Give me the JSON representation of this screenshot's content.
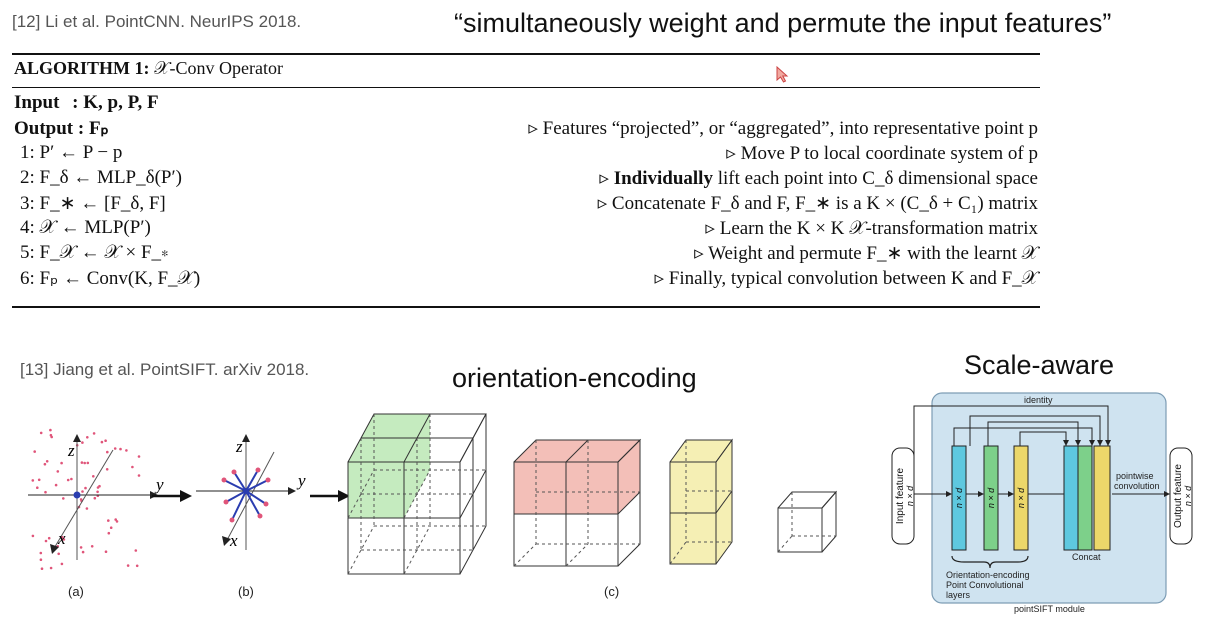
{
  "slide": {
    "ref_top": "[12] Li et al. PointCNN. NeurIPS 2018.",
    "quote": "“simultaneously weight and permute the input features”",
    "ref_bottom": "[13] Jiang et al. PointSIFT. arXiv 2018.",
    "orientation_title": "orientation-encoding",
    "scale_title": "Scale-aware"
  },
  "algorithm": {
    "title_bold": "ALGORITHM 1:",
    "title_rest": "𝒳-Conv Operator",
    "input_label": "Input",
    "input_value": ": K, p, P, F",
    "output_label": "Output",
    "output_value": ": Fₚ",
    "output_comment": "▹ Features “projected”, or “aggregated”, into representative point p",
    "steps": [
      {
        "code": "1:  P′ ← P − p",
        "comment": "▹ Move P to local coordinate system of p"
      },
      {
        "code": "2:  F_δ ← MLP_δ(P′)",
        "comment_bold": "Individually",
        "comment": " lift each point into C_δ dimensional space"
      },
      {
        "code": "3:  F_∗ ← [F_δ, F]",
        "comment": "▹ Concatenate F_δ and F, F_∗ is a K × (C_δ + C₁) matrix"
      },
      {
        "code": "4:  𝒳 ← MLP(P′)",
        "comment": "▹ Learn the K × K 𝒳-transformation matrix"
      },
      {
        "code": "5:  F_𝒳 ← 𝒳 × F_∗",
        "comment": "▹ Weight and permute F_∗ with the learnt 𝒳"
      },
      {
        "code": "6:  Fₚ ← Conv(K, F_𝒳)",
        "comment": "▹ Finally, typical convolution between K and F_𝒳"
      }
    ]
  },
  "figure": {
    "cap_a": "(a)",
    "cap_b": "(b)",
    "cap_c": "(c)",
    "axis_y": "y",
    "axis_z": "z",
    "axis_x": "x",
    "module": {
      "identity": "identity",
      "input_feature": "Input feature",
      "input_dim": "n × d",
      "output_feature": "Output feature",
      "output_dim": "n × d",
      "bar_dim": "n × d",
      "pointwise_1": "pointwise",
      "pointwise_2": "convolution",
      "concat": "Concat",
      "oe_1": "Orientation-encoding",
      "oe_2": "Point Convolutional",
      "oe_3": "layers",
      "module_name": "pointSIFT module"
    },
    "colors": {
      "module_bg": "#cfe3f0",
      "cyan": "#5ec8df",
      "green": "#7dd08a",
      "yellow": "#ecd76a",
      "cube_green": "#bfe9b8",
      "cube_red": "#f2b8b0",
      "cube_yellow": "#f4eeb0",
      "points": "#e0557a"
    }
  }
}
